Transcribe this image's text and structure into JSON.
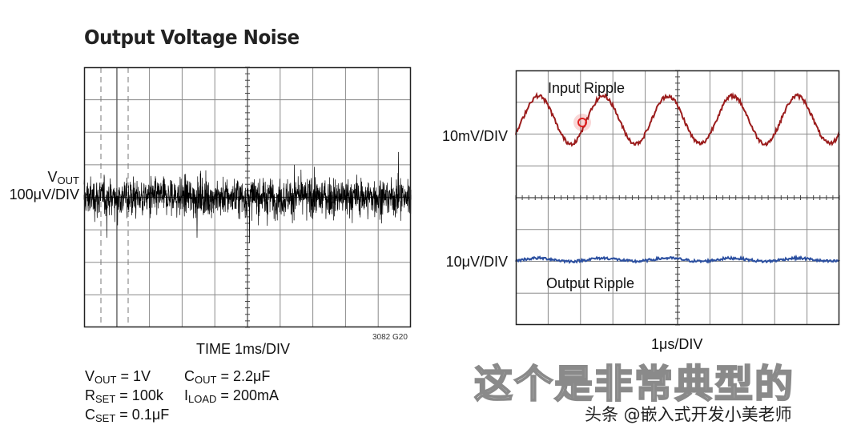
{
  "chart_data": [
    {
      "type": "line",
      "title": "Output Voltage Noise",
      "ylabel_main": "V",
      "ylabel_sub": "OUT",
      "ylabel_scale": "100μV/DIV",
      "xlabel": "TIME 1ms/DIV",
      "figure_code": "3082 G20",
      "grid": true,
      "x_divisions": 10,
      "y_divisions": 8,
      "series": [
        {
          "trace": "broadband noise",
          "center_div": 4,
          "rms_div": 0.42,
          "peak_div": 1.9,
          "color": "#000000"
        }
      ],
      "conditions": [
        {
          "main": "V",
          "sub": "OUT",
          "value": " = 1V"
        },
        {
          "main": "R",
          "sub": "SET",
          "value": " = 100k"
        },
        {
          "main": "C",
          "sub": "SET",
          "value": " = 0.1μF"
        },
        {
          "main": "C",
          "sub": "OUT",
          "value": " = 2.2μF"
        },
        {
          "main": "I",
          "sub": "LOAD",
          "value": " = 200mA"
        }
      ]
    },
    {
      "type": "line",
      "xlabel": "1μs/DIV",
      "grid": true,
      "x_divisions": 10,
      "y_divisions": 8,
      "series": [
        {
          "name": "Input Ripple",
          "scale": "10mV/DIV",
          "center_div": 6.45,
          "amplitude_div": 0.75,
          "period_div": 2.0,
          "phase_div": 0.2,
          "color": "#9b1c1c"
        },
        {
          "name": "Output Ripple",
          "scale": "10μV/DIV",
          "center_div": 2.05,
          "amplitude_div": 0.05,
          "period_div": 2.0,
          "phase_div": 0.2,
          "color": "#2b4fa0"
        }
      ]
    }
  ],
  "overlay": {
    "subtitle": "这个是非常典型的",
    "watermark": "头条 @嵌入式开发小美老师",
    "cursor_color": "#e02020"
  }
}
